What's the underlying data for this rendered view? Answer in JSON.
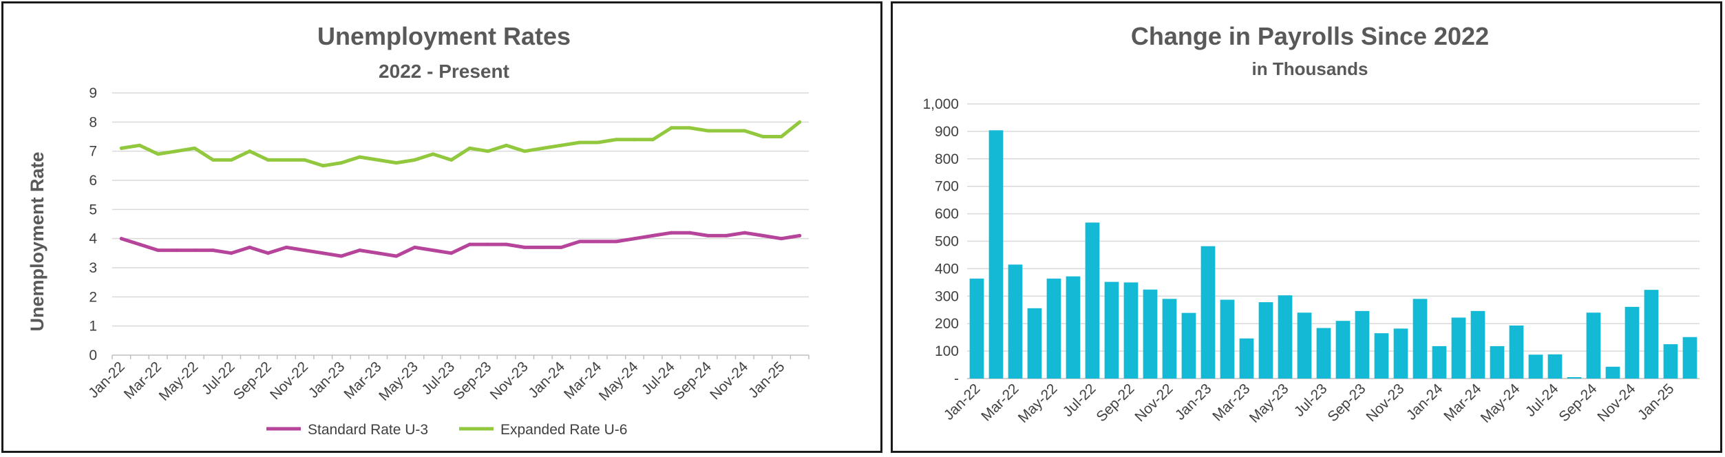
{
  "chart_data": [
    {
      "type": "line",
      "title": "Unemployment Rates",
      "subtitle": "2022 - Present",
      "xlabel": "",
      "ylabel": "Unemployment Rate",
      "ylim": [
        0,
        9
      ],
      "yticks": [
        "0",
        "1",
        "2",
        "3",
        "4",
        "5",
        "6",
        "7",
        "8",
        "9"
      ],
      "grid": true,
      "legend_position": "bottom",
      "x": [
        "Jan-22",
        "Feb-22",
        "Mar-22",
        "Apr-22",
        "May-22",
        "Jun-22",
        "Jul-22",
        "Aug-22",
        "Sep-22",
        "Oct-22",
        "Nov-22",
        "Dec-22",
        "Jan-23",
        "Feb-23",
        "Mar-23",
        "Apr-23",
        "May-23",
        "Jun-23",
        "Jul-23",
        "Aug-23",
        "Sep-23",
        "Oct-23",
        "Nov-23",
        "Dec-23",
        "Jan-24",
        "Feb-24",
        "Mar-24",
        "Apr-24",
        "May-24",
        "Jun-24",
        "Jul-24",
        "Aug-24",
        "Sep-24",
        "Oct-24",
        "Nov-24",
        "Dec-24",
        "Jan-25",
        "Feb-25"
      ],
      "xtick_labels": [
        "Jan-22",
        "Mar-22",
        "May-22",
        "Jul-22",
        "Sep-22",
        "Nov-22",
        "Jan-23",
        "Mar-23",
        "May-23",
        "Jul-23",
        "Sep-23",
        "Nov-23",
        "Jan-24",
        "Mar-24",
        "May-24",
        "Jul-24",
        "Sep-24",
        "Nov-24",
        "Jan-25"
      ],
      "series": [
        {
          "name": "Standard Rate U-3",
          "color": "#b5449a",
          "values": [
            4.0,
            3.8,
            3.6,
            3.6,
            3.6,
            3.6,
            3.5,
            3.7,
            3.5,
            3.7,
            3.6,
            3.5,
            3.4,
            3.6,
            3.5,
            3.4,
            3.7,
            3.6,
            3.5,
            3.8,
            3.8,
            3.8,
            3.7,
            3.7,
            3.7,
            3.9,
            3.9,
            3.9,
            4.0,
            4.1,
            4.2,
            4.2,
            4.1,
            4.1,
            4.2,
            4.1,
            4.0,
            4.1
          ]
        },
        {
          "name": "Expanded Rate U-6",
          "color": "#92c83e",
          "values": [
            7.1,
            7.2,
            6.9,
            7.0,
            7.1,
            6.7,
            6.7,
            7.0,
            6.7,
            6.7,
            6.7,
            6.5,
            6.6,
            6.8,
            6.7,
            6.6,
            6.7,
            6.9,
            6.7,
            7.1,
            7.0,
            7.2,
            7.0,
            7.1,
            7.2,
            7.3,
            7.3,
            7.4,
            7.4,
            7.4,
            7.8,
            7.8,
            7.7,
            7.7,
            7.7,
            7.5,
            7.5,
            8.0
          ]
        }
      ]
    },
    {
      "type": "bar",
      "title": "Change in Payrolls Since 2022",
      "subtitle": "in Thousands",
      "xlabel": "",
      "ylabel": "",
      "ylim": [
        0,
        1000
      ],
      "yticks": [
        "-",
        "100",
        "200",
        "300",
        "400",
        "500",
        "600",
        "700",
        "800",
        "900",
        "1,000"
      ],
      "grid": true,
      "color": "#14b9d6",
      "categories": [
        "Jan-22",
        "Feb-22",
        "Mar-22",
        "Apr-22",
        "May-22",
        "Jun-22",
        "Jul-22",
        "Aug-22",
        "Sep-22",
        "Oct-22",
        "Nov-22",
        "Dec-22",
        "Jan-23",
        "Feb-23",
        "Mar-23",
        "Apr-23",
        "May-23",
        "Jun-23",
        "Jul-23",
        "Aug-23",
        "Sep-23",
        "Oct-23",
        "Nov-23",
        "Dec-23",
        "Jan-24",
        "Feb-24",
        "Mar-24",
        "Apr-24",
        "May-24",
        "Jun-24",
        "Jul-24",
        "Aug-24",
        "Sep-24",
        "Oct-24",
        "Nov-24",
        "Dec-24",
        "Jan-25",
        "Feb-25"
      ],
      "xtick_labels": [
        "Jan-22",
        "Mar-22",
        "May-22",
        "Jul-22",
        "Sep-22",
        "Nov-22",
        "Jan-23",
        "Mar-23",
        "May-23",
        "Jul-23",
        "Sep-23",
        "Nov-23",
        "Jan-24",
        "Mar-24",
        "May-24",
        "Jul-24",
        "Sep-24",
        "Nov-24",
        "Jan-25"
      ],
      "values": [
        364,
        904,
        415,
        256,
        364,
        372,
        568,
        352,
        350,
        324,
        290,
        239,
        482,
        287,
        146,
        278,
        303,
        240,
        184,
        210,
        246,
        165,
        182,
        290,
        118,
        222,
        246,
        118,
        193,
        87,
        88,
        5,
        240,
        43,
        261,
        323,
        125,
        151
      ]
    }
  ]
}
